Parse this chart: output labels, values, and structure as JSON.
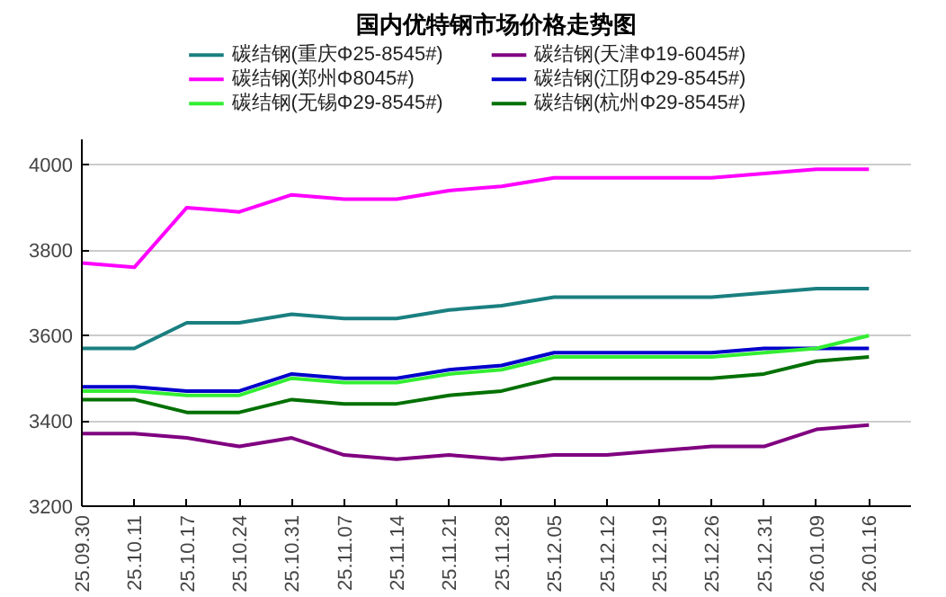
{
  "chart_data": {
    "type": "line",
    "title": "国内优特钢市场价格走势图",
    "categories": [
      "25.09.30",
      "25.10.11",
      "25.10.17",
      "25.10.24",
      "25.10.31",
      "25.11.07",
      "25.11.14",
      "25.11.21",
      "25.11.28",
      "25.12.05",
      "25.12.12",
      "25.12.19",
      "25.12.26",
      "25.12.31",
      "26.01.09",
      "26.01.16"
    ],
    "ylim": [
      3200,
      4060
    ],
    "yticks": [
      3200,
      3400,
      3600,
      3800,
      4000
    ],
    "grid": "y",
    "legend": "top",
    "marker": "none",
    "line_style": "solid",
    "series": [
      {
        "name": "碳结钢(重庆Φ25-8545#)",
        "color": "#1a7f80",
        "values": [
          3570,
          3570,
          3630,
          3630,
          3650,
          3640,
          3640,
          3660,
          3670,
          3690,
          3690,
          3690,
          3690,
          3700,
          3710,
          3710
        ]
      },
      {
        "name": "碳结钢(天津Φ19-6045#)",
        "color": "#800080",
        "values": [
          3370,
          3370,
          3360,
          3340,
          3360,
          3320,
          3310,
          3320,
          3310,
          3320,
          3320,
          3330,
          3340,
          3340,
          3380,
          3390
        ]
      },
      {
        "name": "碳结钢(郑州Φ8045#)",
        "color": "#ff00ff",
        "values": [
          3770,
          3760,
          3900,
          3890,
          3930,
          3920,
          3920,
          3940,
          3950,
          3970,
          3970,
          3970,
          3970,
          3980,
          3990,
          3990
        ]
      },
      {
        "name": "碳结钢(江阴Φ29-8545#)",
        "color": "#0000cc",
        "values": [
          3480,
          3480,
          3470,
          3470,
          3510,
          3500,
          3500,
          3520,
          3530,
          3560,
          3560,
          3560,
          3560,
          3570,
          3570,
          3570
        ]
      },
      {
        "name": "碳结钢(无锡Φ29-8545#)",
        "color": "#33ee33",
        "values": [
          3470,
          3470,
          3460,
          3460,
          3500,
          3490,
          3490,
          3510,
          3520,
          3550,
          3550,
          3550,
          3550,
          3560,
          3570,
          3600
        ]
      },
      {
        "name": "碳结钢(杭州Φ29-8545#)",
        "color": "#007000",
        "values": [
          3450,
          3450,
          3420,
          3420,
          3450,
          3440,
          3440,
          3460,
          3470,
          3500,
          3500,
          3500,
          3500,
          3510,
          3540,
          3550
        ]
      }
    ]
  }
}
